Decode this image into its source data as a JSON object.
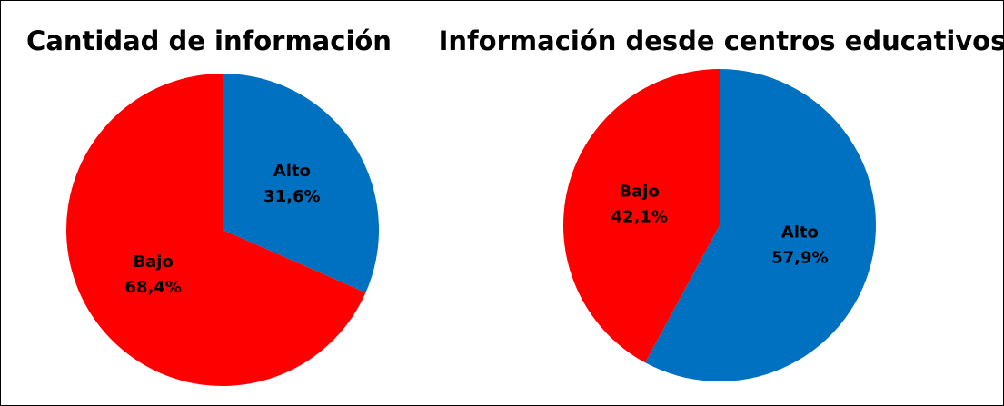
{
  "chart_data": [
    {
      "type": "pie",
      "title": "Cantidad de información",
      "categories": [
        "Alto",
        "Bajo"
      ],
      "values": [
        31.6,
        68.4
      ],
      "value_labels": [
        "31,6%",
        "68,4%"
      ],
      "colors": [
        "#0070c0",
        "#ff0000"
      ]
    },
    {
      "type": "pie",
      "title": "Información desde centros educativos",
      "categories": [
        "Alto",
        "Bajo"
      ],
      "values": [
        57.9,
        42.1
      ],
      "value_labels": [
        "57,9%",
        "42,1%"
      ],
      "colors": [
        "#0070c0",
        "#ff0000"
      ]
    }
  ]
}
